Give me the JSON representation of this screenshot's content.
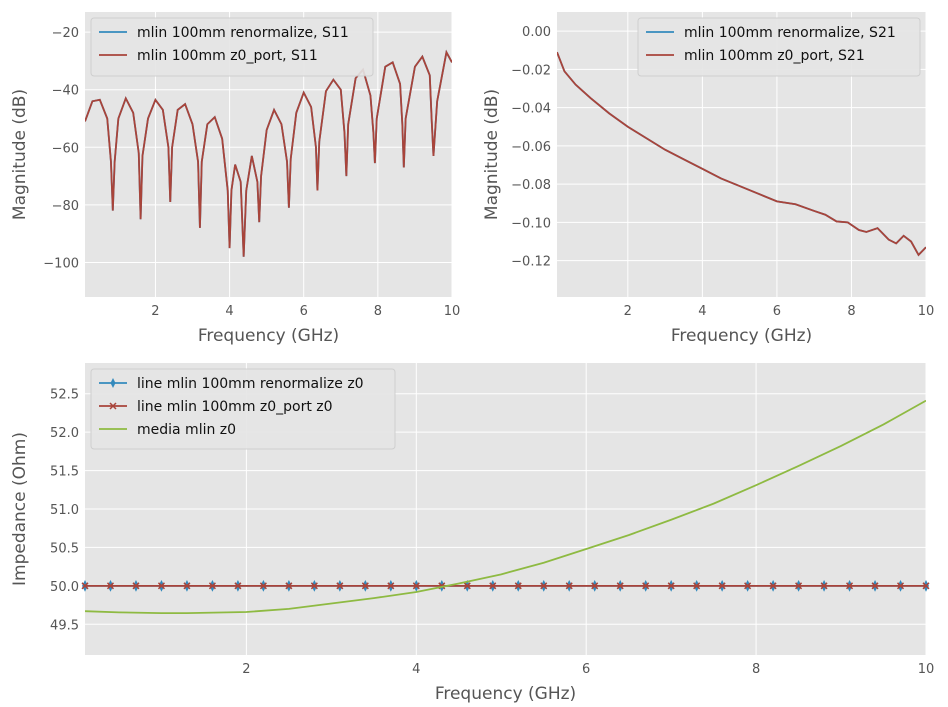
{
  "colors": {
    "blue": "#348abd",
    "red": "#a9443a",
    "green": "#8eba42"
  },
  "chart_data": [
    {
      "type": "line",
      "xlabel": "Frequency (GHz)",
      "ylabel": "Magnitude (dB)",
      "xlim": [
        0.1,
        10
      ],
      "ylim": [
        -112,
        -13
      ],
      "xticks": [
        2,
        4,
        6,
        8,
        10
      ],
      "xtick_labels": [
        "2",
        "4",
        "6",
        "8",
        "10"
      ],
      "yticks": [
        -100,
        -80,
        -60,
        -40,
        -20
      ],
      "ytick_labels": [
        "−100",
        "−80",
        "−60",
        "−40",
        "−20"
      ],
      "grid": true,
      "legend_position": "top-left",
      "series": [
        {
          "name": "mlin 100mm renormalize, S11",
          "color": "#348abd",
          "x": [
            0.1,
            0.3,
            0.5,
            0.7,
            0.8,
            0.85,
            0.9,
            1.0,
            1.2,
            1.4,
            1.55,
            1.6,
            1.65,
            1.8,
            2.0,
            2.2,
            2.35,
            2.4,
            2.45,
            2.6,
            2.8,
            3.0,
            3.15,
            3.2,
            3.25,
            3.4,
            3.6,
            3.8,
            3.95,
            4.0,
            4.05,
            4.15,
            4.3,
            4.38,
            4.45,
            4.6,
            4.75,
            4.8,
            4.85,
            5.0,
            5.2,
            5.4,
            5.55,
            5.6,
            5.65,
            5.8,
            6.0,
            6.2,
            6.33,
            6.37,
            6.42,
            6.6,
            6.8,
            7.0,
            7.1,
            7.15,
            7.2,
            7.4,
            7.6,
            7.8,
            7.88,
            7.92,
            7.97,
            8.2,
            8.4,
            8.6,
            8.66,
            8.7,
            8.75,
            9.0,
            9.2,
            9.4,
            9.45,
            9.5,
            9.6,
            9.85,
            10.0
          ],
          "y": [
            -51,
            -44,
            -43.5,
            -50,
            -65,
            -82,
            -65,
            -50,
            -43,
            -48,
            -62,
            -85,
            -63,
            -50,
            -43.5,
            -47,
            -60,
            -79,
            -60,
            -47,
            -45,
            -52,
            -65,
            -88,
            -65,
            -52,
            -49.5,
            -57,
            -75,
            -95,
            -75,
            -66,
            -72,
            -98,
            -75,
            -63,
            -72,
            -86,
            -70,
            -54,
            -47,
            -52,
            -65,
            -81,
            -64,
            -48,
            -41,
            -46,
            -60,
            -75,
            -58,
            -40.5,
            -36.5,
            -40,
            -55,
            -70,
            -52,
            -36,
            -33,
            -42,
            -55,
            -65.5,
            -50,
            -32,
            -30.5,
            -38,
            -52,
            -67,
            -50,
            -32,
            -28.5,
            -35,
            -50,
            -63,
            -44,
            -27,
            -30.5
          ]
        },
        {
          "name": "mlin 100mm z0_port, S11",
          "color": "#a9443a",
          "x": [
            0.1,
            0.3,
            0.5,
            0.7,
            0.8,
            0.85,
            0.9,
            1.0,
            1.2,
            1.4,
            1.55,
            1.6,
            1.65,
            1.8,
            2.0,
            2.2,
            2.35,
            2.4,
            2.45,
            2.6,
            2.8,
            3.0,
            3.15,
            3.2,
            3.25,
            3.4,
            3.6,
            3.8,
            3.95,
            4.0,
            4.05,
            4.15,
            4.3,
            4.38,
            4.45,
            4.6,
            4.75,
            4.8,
            4.85,
            5.0,
            5.2,
            5.4,
            5.55,
            5.6,
            5.65,
            5.8,
            6.0,
            6.2,
            6.33,
            6.37,
            6.42,
            6.6,
            6.8,
            7.0,
            7.1,
            7.15,
            7.2,
            7.4,
            7.6,
            7.8,
            7.88,
            7.92,
            7.97,
            8.2,
            8.4,
            8.6,
            8.66,
            8.7,
            8.75,
            9.0,
            9.2,
            9.4,
            9.45,
            9.5,
            9.6,
            9.85,
            10.0
          ],
          "y": [
            -51,
            -44,
            -43.5,
            -50,
            -65,
            -82,
            -65,
            -50,
            -43,
            -48,
            -62,
            -85,
            -63,
            -50,
            -43.5,
            -47,
            -60,
            -79,
            -60,
            -47,
            -45,
            -52,
            -65,
            -88,
            -65,
            -52,
            -49.5,
            -57,
            -75,
            -95,
            -75,
            -66,
            -72,
            -98,
            -75,
            -63,
            -72,
            -86,
            -70,
            -54,
            -47,
            -52,
            -65,
            -81,
            -64,
            -48,
            -41,
            -46,
            -60,
            -75,
            -58,
            -40.5,
            -36.5,
            -40,
            -55,
            -70,
            -52,
            -36,
            -33,
            -42,
            -55,
            -65.5,
            -50,
            -32,
            -30.5,
            -38,
            -52,
            -67,
            -50,
            -32,
            -28.5,
            -35,
            -50,
            -63,
            -44,
            -27,
            -30.5
          ]
        }
      ]
    },
    {
      "type": "line",
      "xlabel": "Frequency (GHz)",
      "ylabel": "Magnitude (dB)",
      "xlim": [
        0.1,
        10
      ],
      "ylim": [
        -0.139,
        0.01
      ],
      "xticks": [
        2,
        4,
        6,
        8,
        10
      ],
      "xtick_labels": [
        "2",
        "4",
        "6",
        "8",
        "10"
      ],
      "yticks": [
        0.0,
        -0.02,
        -0.04,
        -0.06,
        -0.08,
        -0.1,
        -0.12
      ],
      "ytick_labels": [
        "0.00",
        "−0.02",
        "−0.04",
        "−0.06",
        "−0.08",
        "−0.10",
        "−0.12"
      ],
      "grid": true,
      "legend_position": "top-right",
      "series": [
        {
          "name": "mlin 100mm renormalize, S21",
          "color": "#348abd",
          "x": [
            0.1,
            0.3,
            0.6,
            1.0,
            1.5,
            2.0,
            2.5,
            3.0,
            3.5,
            4.0,
            4.5,
            5.0,
            5.5,
            6.0,
            6.5,
            7.0,
            7.3,
            7.6,
            7.9,
            8.2,
            8.4,
            8.7,
            9.0,
            9.2,
            9.4,
            9.6,
            9.8,
            10.0
          ],
          "y": [
            -0.011,
            -0.021,
            -0.028,
            -0.035,
            -0.043,
            -0.05,
            -0.056,
            -0.062,
            -0.067,
            -0.072,
            -0.077,
            -0.081,
            -0.085,
            -0.089,
            -0.0905,
            -0.094,
            -0.096,
            -0.0995,
            -0.1,
            -0.104,
            -0.105,
            -0.103,
            -0.109,
            -0.111,
            -0.107,
            -0.11,
            -0.117,
            -0.113
          ]
        },
        {
          "name": "mlin 100mm z0_port, S21",
          "color": "#a9443a",
          "x": [
            0.1,
            0.3,
            0.6,
            1.0,
            1.5,
            2.0,
            2.5,
            3.0,
            3.5,
            4.0,
            4.5,
            5.0,
            5.5,
            6.0,
            6.5,
            7.0,
            7.3,
            7.6,
            7.9,
            8.2,
            8.4,
            8.7,
            9.0,
            9.2,
            9.4,
            9.6,
            9.8,
            10.0
          ],
          "y": [
            -0.011,
            -0.021,
            -0.028,
            -0.035,
            -0.043,
            -0.05,
            -0.056,
            -0.062,
            -0.067,
            -0.072,
            -0.077,
            -0.081,
            -0.085,
            -0.089,
            -0.0905,
            -0.094,
            -0.096,
            -0.0995,
            -0.1,
            -0.104,
            -0.105,
            -0.103,
            -0.109,
            -0.111,
            -0.107,
            -0.11,
            -0.117,
            -0.113
          ]
        }
      ]
    },
    {
      "type": "line",
      "xlabel": "Frequency (GHz)",
      "ylabel": "Impedance (Ohm)",
      "xlim": [
        0.1,
        10
      ],
      "ylim": [
        49.1,
        52.9
      ],
      "xticks": [
        2,
        4,
        6,
        8,
        10
      ],
      "xtick_labels": [
        "2",
        "4",
        "6",
        "8",
        "10"
      ],
      "yticks": [
        49.5,
        50.0,
        50.5,
        51.0,
        51.5,
        52.0,
        52.5
      ],
      "ytick_labels": [
        "49.5",
        "50.0",
        "50.5",
        "51.0",
        "51.5",
        "52.0",
        "52.5"
      ],
      "grid": true,
      "legend_position": "top-left",
      "series": [
        {
          "name": "line mlin 100mm renormalize z0",
          "color": "#348abd",
          "marker": "thin-diamond",
          "marker_count": 34,
          "x": [
            0.1,
            10.0
          ],
          "y": [
            50.0,
            50.0
          ]
        },
        {
          "name": "line mlin 100mm z0_port z0",
          "color": "#a9443a",
          "marker": "x",
          "marker_count": 34,
          "x": [
            0.1,
            10.0
          ],
          "y": [
            50.0,
            50.0
          ]
        },
        {
          "name": "media mlin z0",
          "color": "#8eba42",
          "x": [
            0.1,
            0.5,
            1.0,
            1.3,
            2.0,
            2.5,
            3.0,
            3.5,
            4.0,
            4.5,
            5.0,
            5.5,
            6.0,
            6.5,
            7.0,
            7.5,
            8.0,
            8.5,
            9.0,
            9.5,
            10.0
          ],
          "y": [
            49.67,
            49.655,
            49.645,
            49.645,
            49.66,
            49.7,
            49.77,
            49.84,
            49.92,
            50.03,
            50.15,
            50.3,
            50.48,
            50.66,
            50.86,
            51.07,
            51.31,
            51.56,
            51.82,
            52.1,
            52.41
          ]
        }
      ]
    }
  ]
}
